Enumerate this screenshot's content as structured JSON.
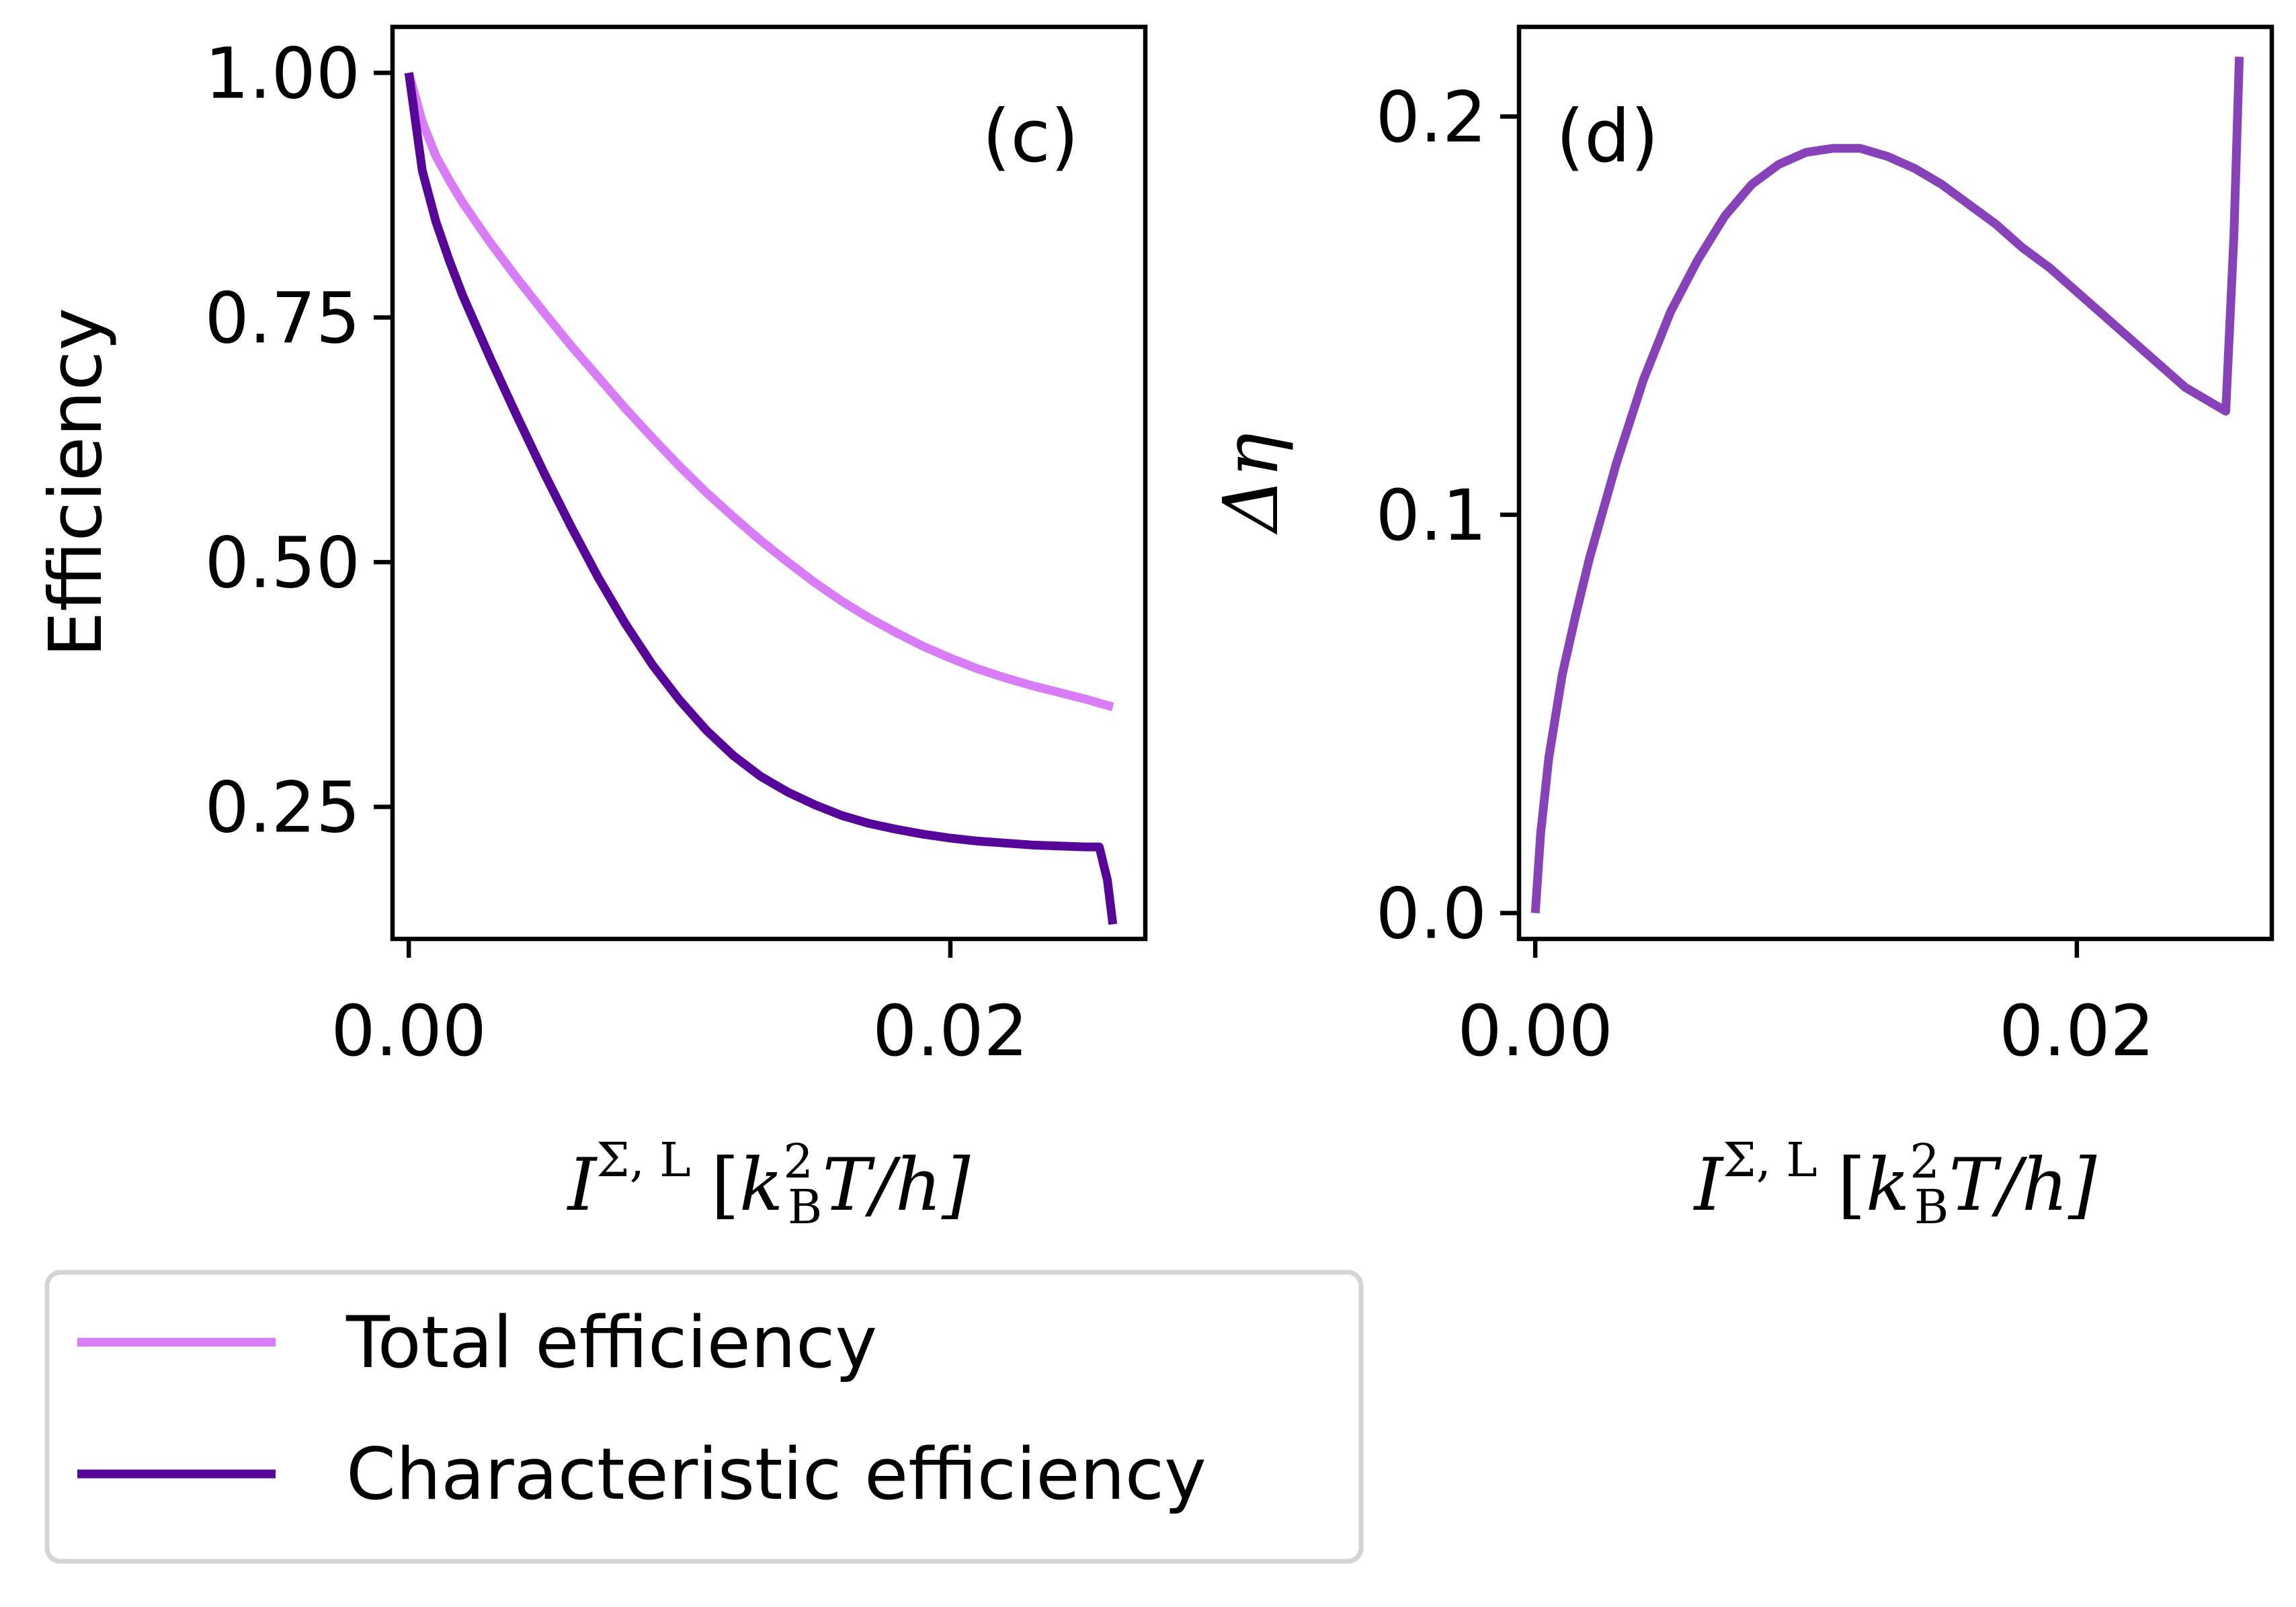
{
  "colors": {
    "total": "#d97cf7",
    "characteristic": "#56079a",
    "delta": "#8742b9",
    "legend_border": "#d4d4d4"
  },
  "legend": {
    "total_label": "Total efficiency",
    "characteristic_label": "Characteristic efficiency"
  },
  "chart_data": [
    {
      "type": "line",
      "panel_label": "(c)",
      "ylabel": "Efficiency",
      "xlabel": "I^{Σ,L} [k_B^2 T/h]",
      "xlabel_parts": {
        "I": "I",
        "sup": "Σ, L",
        "open": "[",
        "k": "k",
        "sup2": "2",
        "sub": "B",
        "rest": "T/h]"
      },
      "xlim": [
        -0.0006,
        0.0272
      ],
      "ylim": [
        0.115,
        1.047
      ],
      "xticks": [
        0.0,
        0.02
      ],
      "xtick_labels": [
        "0.00",
        "0.02"
      ],
      "yticks": [
        0.25,
        0.5,
        0.75,
        1.0
      ],
      "ytick_labels": [
        "0.25",
        "0.50",
        "0.75",
        "1.00"
      ],
      "series": [
        {
          "name": "Total efficiency",
          "x": [
            0.0,
            0.0005,
            0.001,
            0.0015,
            0.002,
            0.003,
            0.004,
            0.005,
            0.006,
            0.007,
            0.008,
            0.009,
            0.01,
            0.011,
            0.012,
            0.013,
            0.014,
            0.015,
            0.016,
            0.017,
            0.018,
            0.019,
            0.02,
            0.021,
            0.022,
            0.023,
            0.024,
            0.025,
            0.0255,
            0.026
          ],
          "y": [
            1.0,
            0.95,
            0.915,
            0.89,
            0.867,
            0.827,
            0.79,
            0.755,
            0.721,
            0.689,
            0.657,
            0.627,
            0.598,
            0.571,
            0.546,
            0.522,
            0.5,
            0.479,
            0.46,
            0.443,
            0.428,
            0.414,
            0.402,
            0.391,
            0.382,
            0.374,
            0.367,
            0.36,
            0.356,
            0.352
          ]
        },
        {
          "name": "Characteristic efficiency",
          "x": [
            0.0,
            0.0005,
            0.001,
            0.0015,
            0.002,
            0.003,
            0.004,
            0.005,
            0.006,
            0.007,
            0.008,
            0.009,
            0.01,
            0.011,
            0.012,
            0.013,
            0.014,
            0.015,
            0.016,
            0.017,
            0.018,
            0.019,
            0.02,
            0.021,
            0.022,
            0.023,
            0.024,
            0.025,
            0.0255,
            0.0258,
            0.026
          ],
          "y": [
            1.0,
            0.9,
            0.848,
            0.808,
            0.772,
            0.709,
            0.649,
            0.591,
            0.536,
            0.484,
            0.437,
            0.395,
            0.359,
            0.328,
            0.302,
            0.281,
            0.265,
            0.252,
            0.241,
            0.233,
            0.227,
            0.222,
            0.218,
            0.215,
            0.213,
            0.211,
            0.21,
            0.209,
            0.209,
            0.175,
            0.13
          ]
        }
      ]
    },
    {
      "type": "line",
      "panel_label": "(d)",
      "ylabel": "Δη",
      "xlabel": "I^{Σ,L} [k_B^2 T/h]",
      "xlabel_parts": {
        "I": "I",
        "sup": "Σ, L",
        "open": "[",
        "k": "k",
        "sup2": "2",
        "sub": "B",
        "rest": "T/h]"
      },
      "xlim": [
        -0.0006,
        0.0272
      ],
      "ylim": [
        -0.0065,
        0.2225
      ],
      "xticks": [
        0.0,
        0.02
      ],
      "xtick_labels": [
        "0.00",
        "0.02"
      ],
      "yticks": [
        0.0,
        0.1,
        0.2
      ],
      "ytick_labels": [
        "0.0",
        "0.1",
        "0.2"
      ],
      "series": [
        {
          "name": "Δη",
          "x": [
            0.0,
            0.0002,
            0.0005,
            0.001,
            0.0015,
            0.002,
            0.003,
            0.004,
            0.005,
            0.006,
            0.007,
            0.008,
            0.009,
            0.01,
            0.011,
            0.012,
            0.013,
            0.014,
            0.015,
            0.016,
            0.017,
            0.018,
            0.019,
            0.02,
            0.021,
            0.022,
            0.023,
            0.024,
            0.025,
            0.0255,
            0.0258,
            0.026
          ],
          "y": [
            0.0,
            0.02,
            0.039,
            0.06,
            0.075,
            0.089,
            0.113,
            0.134,
            0.151,
            0.164,
            0.175,
            0.183,
            0.188,
            0.191,
            0.192,
            0.192,
            0.19,
            0.187,
            0.183,
            0.178,
            0.173,
            0.167,
            0.162,
            0.156,
            0.15,
            0.144,
            0.138,
            0.132,
            0.128,
            0.126,
            0.17,
            0.215
          ]
        }
      ]
    }
  ]
}
